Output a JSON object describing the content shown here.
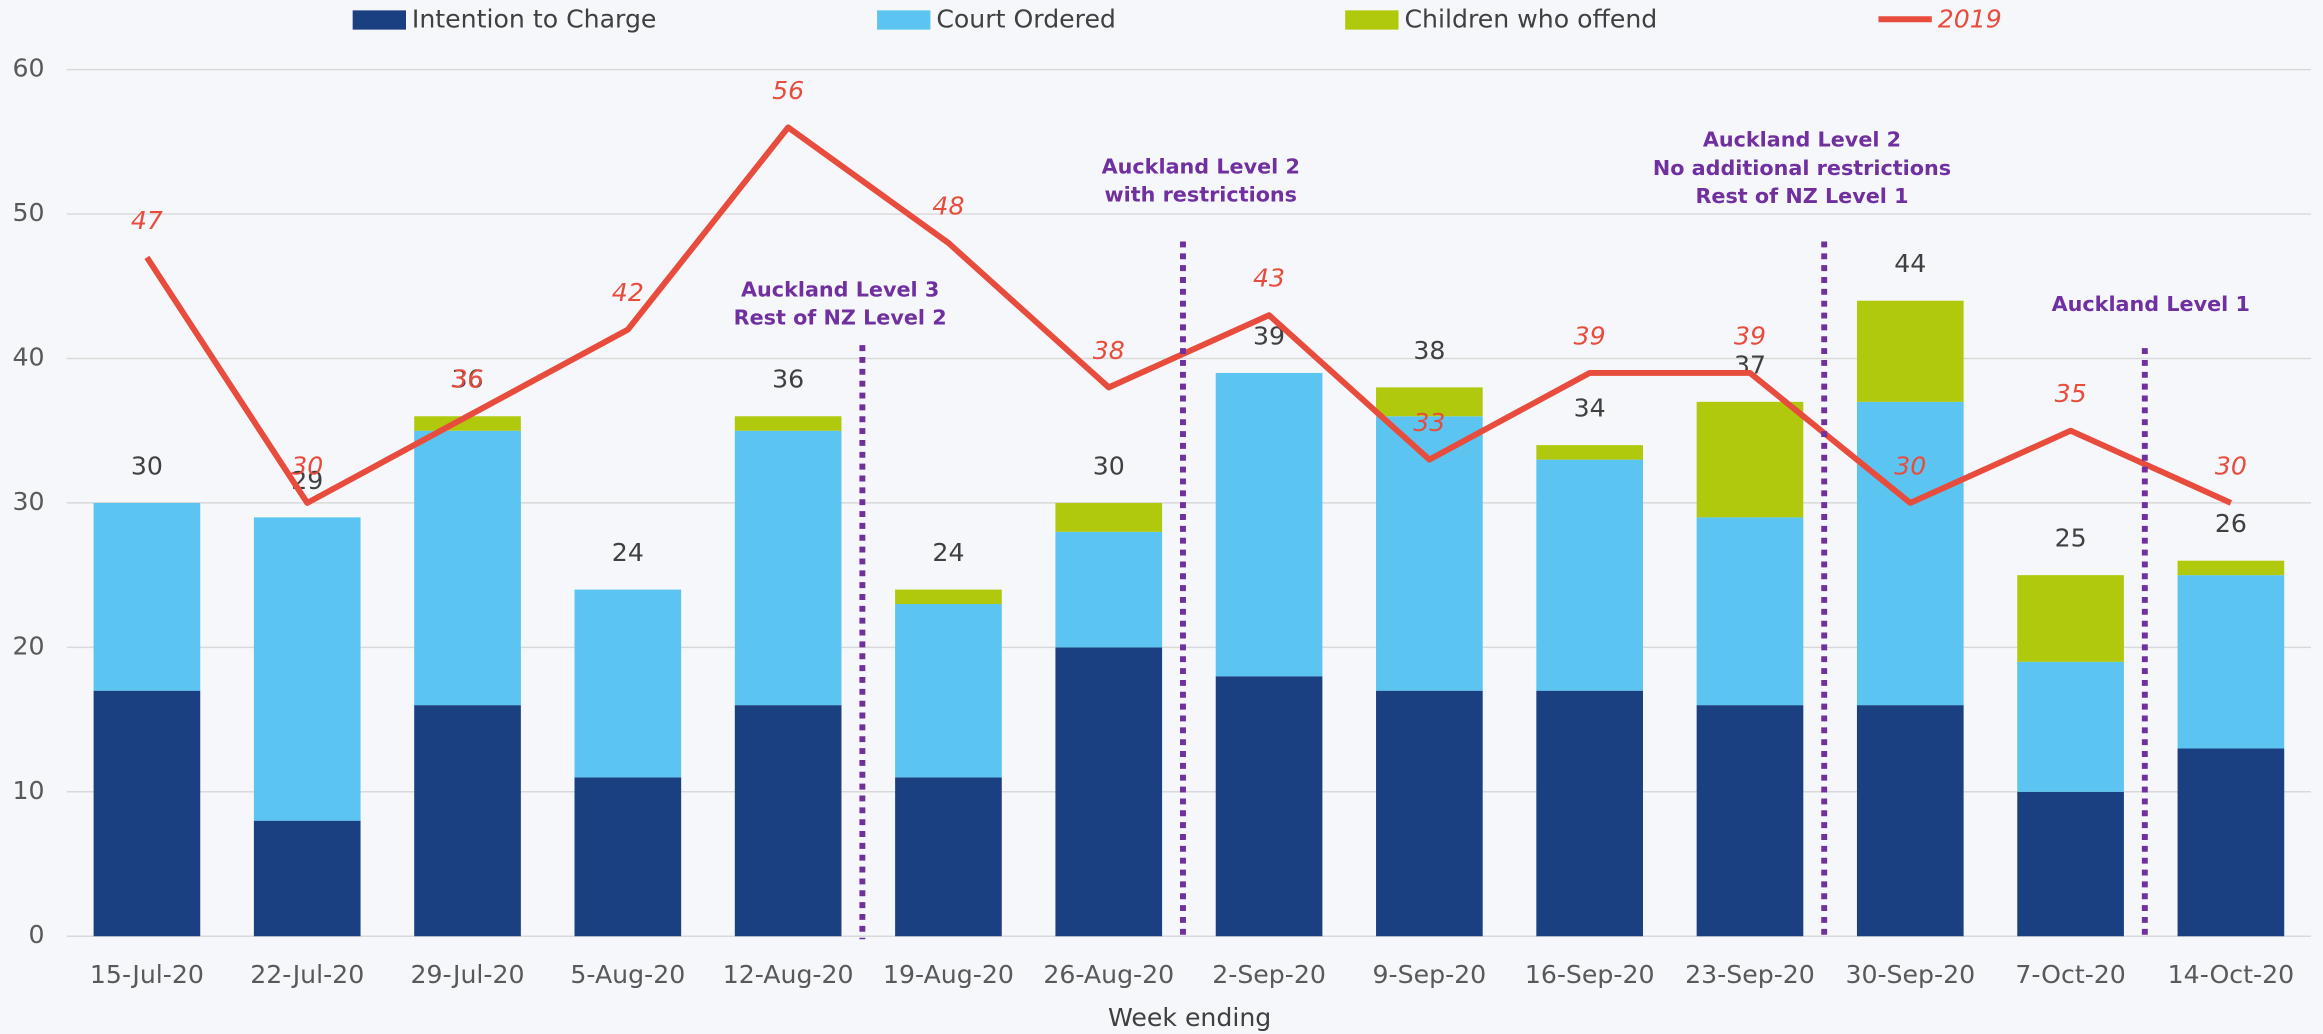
{
  "chart_data": {
    "type": "stacked_bar_line",
    "x_label": "Week ending",
    "categories": [
      "15-Jul-20",
      "22-Jul-20",
      "29-Jul-20",
      "5-Aug-20",
      "12-Aug-20",
      "19-Aug-20",
      "26-Aug-20",
      "2-Sep-20",
      "9-Sep-20",
      "16-Sep-20",
      "23-Sep-20",
      "30-Sep-20",
      "7-Oct-20",
      "14-Oct-20"
    ],
    "series": [
      {
        "name": "Intention to Charge",
        "color": "#1a4082",
        "values": [
          17,
          8,
          16,
          11,
          16,
          11,
          20,
          18,
          17,
          17,
          16,
          16,
          10,
          13
        ]
      },
      {
        "name": "Court Ordered",
        "color": "#5bc4f0",
        "values": [
          13,
          21,
          19,
          13,
          19,
          12,
          8,
          21,
          19,
          16,
          13,
          21,
          9,
          12
        ]
      },
      {
        "name": "Children who offend",
        "color": "#b0c90c",
        "values": [
          0,
          0,
          1,
          0,
          1,
          1,
          2,
          0,
          2,
          1,
          8,
          7,
          6,
          1
        ]
      },
      {
        "name": "2019",
        "type": "line",
        "color": "#e84c3d",
        "values": [
          47,
          30,
          36,
          42,
          56,
          48,
          38,
          43,
          33,
          39,
          39,
          30,
          35,
          30
        ]
      }
    ],
    "totals": [
      30,
      29,
      36,
      24,
      36,
      24,
      30,
      39,
      38,
      34,
      37,
      44,
      25,
      26
    ],
    "annotations": [
      {
        "lines": [
          "Auckland Level 3",
          "Rest of NZ Level 2"
        ]
      },
      {
        "lines": [
          "Auckland Level 2",
          "with restrictions"
        ]
      },
      {
        "lines": [
          "Auckland Level 2",
          "No additional restrictions",
          "Rest of NZ Level 1"
        ]
      },
      {
        "lines": [
          "Auckland Level 1"
        ]
      }
    ],
    "annotation_color": "#7030a0",
    "ylim": [
      0,
      60
    ],
    "yticks": [
      0,
      10,
      20,
      30,
      40,
      50,
      60
    ],
    "grid": true
  }
}
